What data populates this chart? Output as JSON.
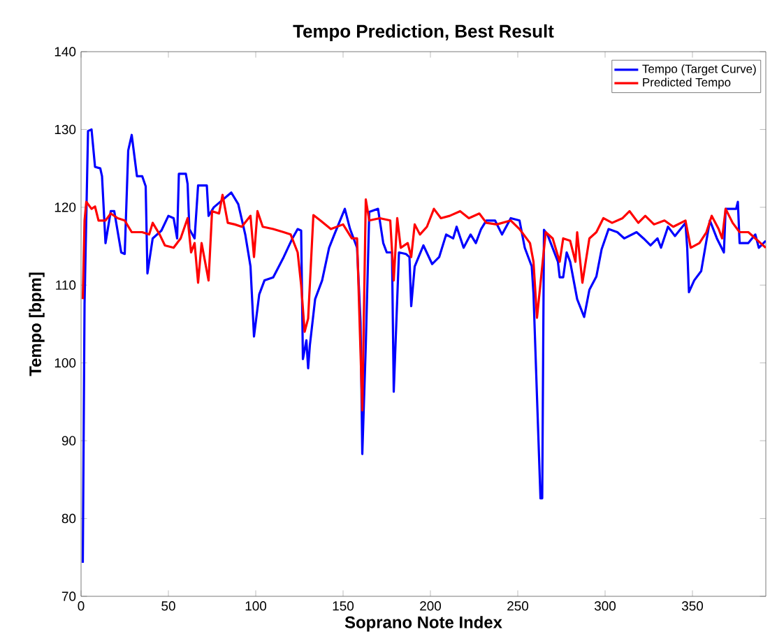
{
  "chart_data": {
    "type": "line",
    "title": "Tempo Prediction, Best Result",
    "xlabel": "Soprano Note Index",
    "ylabel": "Tempo [bpm]",
    "xlim": [
      0,
      392
    ],
    "ylim": [
      70,
      140
    ],
    "xticks": [
      0,
      50,
      100,
      150,
      200,
      250,
      300,
      350
    ],
    "yticks": [
      70,
      80,
      90,
      100,
      110,
      120,
      130,
      140
    ],
    "grid": false,
    "legend": "top right",
    "marker": "none",
    "line_style": "solid",
    "series": [
      {
        "name": "Tempo (Target Curve)",
        "color": "#0000ff",
        "x": [
          1,
          2,
          4,
          6,
          8,
          11,
          12,
          14,
          17,
          19,
          23,
          25,
          27,
          29,
          32,
          35,
          37,
          38,
          41,
          46,
          50,
          53,
          55,
          56,
          60,
          61,
          62,
          65,
          67,
          72,
          73,
          76,
          86,
          90,
          94,
          97,
          99,
          102,
          105,
          110,
          116,
          121,
          124,
          126,
          127,
          129,
          130,
          131,
          134,
          138,
          142,
          145,
          151,
          154,
          158,
          160,
          161,
          163,
          165,
          170,
          173,
          175,
          178,
          179,
          182,
          186,
          188,
          189,
          191,
          196,
          201,
          205,
          209,
          213,
          215,
          219,
          223,
          226,
          229,
          232,
          237,
          241,
          246,
          251,
          254,
          258,
          259,
          261,
          263,
          264,
          265,
          267,
          273,
          274,
          276,
          278,
          280,
          284,
          288,
          291,
          295,
          298,
          302,
          307,
          311,
          318,
          322,
          326,
          330,
          332,
          336,
          340,
          346,
          347,
          348,
          351,
          355,
          360,
          364,
          368,
          369,
          375,
          376,
          377,
          382,
          386,
          388,
          392
        ],
        "values": [
          74.3,
          107.6,
          129.8,
          130,
          125.2,
          125,
          124,
          115.4,
          119.5,
          119.5,
          114.2,
          114,
          127.3,
          129.3,
          124,
          124,
          122.7,
          111.5,
          116,
          117,
          118.9,
          118.6,
          116,
          124.3,
          124.3,
          123,
          117.2,
          116,
          122.8,
          122.8,
          118.9,
          120,
          121.9,
          120.4,
          116.5,
          112.4,
          103.4,
          108.8,
          110.6,
          111,
          113.6,
          116,
          117.2,
          117,
          100.5,
          102.9,
          99.3,
          102.3,
          108.2,
          110.6,
          114.8,
          116.5,
          119.8,
          117.2,
          114.8,
          105.2,
          88.3,
          102.3,
          119.4,
          119.8,
          115.4,
          114.2,
          114.2,
          96.3,
          114.2,
          114,
          113.6,
          107.3,
          112.4,
          115.1,
          112.7,
          113.6,
          116.5,
          116,
          117.5,
          114.8,
          116.5,
          115.4,
          117.2,
          118.3,
          118.3,
          116.5,
          118.6,
          118.3,
          114.8,
          112.4,
          108.9,
          95.7,
          82.6,
          82.6,
          117.1,
          116.5,
          113,
          111,
          111,
          114.2,
          113,
          108.2,
          105.9,
          109.4,
          111.1,
          114.6,
          117.2,
          116.8,
          116,
          116.8,
          116,
          115.1,
          116,
          114.8,
          117.5,
          116.3,
          118,
          114.8,
          109.1,
          110.6,
          111.8,
          118.3,
          116,
          114.2,
          119.8,
          119.8,
          120.7,
          115.4,
          115.4,
          116.5,
          114.8,
          115.7
        ]
      },
      {
        "name": "Predicted Tempo",
        "color": "#ff0000",
        "x": [
          1,
          2,
          3,
          6,
          8,
          10,
          14,
          17,
          21,
          25,
          29,
          35,
          39,
          41,
          45,
          48,
          53,
          57,
          61,
          63,
          65,
          67,
          69,
          73,
          75,
          79,
          81,
          84,
          88,
          92,
          97,
          99,
          101,
          104,
          110,
          116,
          120,
          124,
          126,
          128,
          130,
          133,
          137,
          143,
          150,
          155,
          158,
          161,
          163,
          165,
          171,
          177,
          179,
          181,
          183,
          187,
          189,
          191,
          194,
          198,
          202,
          206,
          211,
          217,
          222,
          228,
          232,
          238,
          246,
          251,
          257,
          259,
          261,
          264,
          266,
          270,
          274,
          276,
          280,
          283,
          284,
          287,
          291,
          295,
          299,
          304,
          310,
          314,
          319,
          323,
          328,
          334,
          339,
          346,
          349,
          354,
          358,
          361,
          365,
          367,
          369,
          373,
          377,
          382,
          386,
          389,
          392
        ],
        "values": [
          108.2,
          118.3,
          120.7,
          119.8,
          120.1,
          118.3,
          118.3,
          119.2,
          118.6,
          118.3,
          116.8,
          116.8,
          116.5,
          118,
          116.5,
          115.1,
          114.8,
          116,
          118.6,
          114.2,
          115.4,
          110.3,
          115.4,
          110.6,
          119.5,
          119.2,
          121.6,
          118,
          117.8,
          117.5,
          118.9,
          113.6,
          119.5,
          117.5,
          117.2,
          116.8,
          116.5,
          114.2,
          110,
          104,
          105.7,
          119,
          118.3,
          117.2,
          117.8,
          116,
          116,
          93.9,
          121,
          118.3,
          118.6,
          118.3,
          110.6,
          118.6,
          114.8,
          115.4,
          113.6,
          117.8,
          116.5,
          117.5,
          119.8,
          118.6,
          118.9,
          119.5,
          118.6,
          119.2,
          118,
          117.8,
          118.3,
          117.2,
          115.4,
          113,
          105.8,
          112.4,
          116.8,
          116,
          113,
          116,
          115.7,
          113,
          116.8,
          110.3,
          116,
          116.8,
          118.6,
          118,
          118.6,
          119.5,
          118,
          118.9,
          117.8,
          118.3,
          117.5,
          118.3,
          114.8,
          115.4,
          116.8,
          118.9,
          117.2,
          116,
          119.8,
          118,
          116.8,
          116.8,
          116,
          115.4,
          114.8
        ]
      }
    ]
  }
}
